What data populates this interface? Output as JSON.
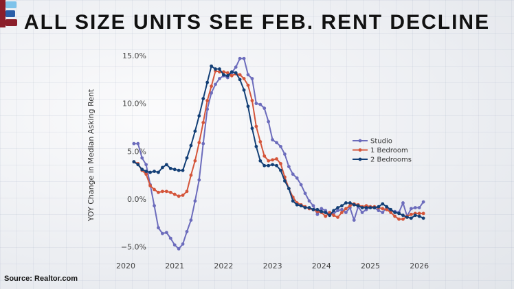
{
  "title": "ALL SIZE UNITS SEE FEB. RENT DECLINE",
  "source": "Source: Realtor.com",
  "logo_text": "B",
  "chart_data": {
    "type": "line",
    "title": "ALL SIZE UNITS SEE FEB. RENT DECLINE",
    "xlabel": "",
    "ylabel": "YOY Change in Median Asking Rent",
    "ylim": [
      -6.5,
      15.5
    ],
    "xlim": [
      "2020-01",
      "2026-04"
    ],
    "x_ticks": [
      "2020",
      "2021",
      "2022",
      "2023",
      "2024",
      "2025",
      "2026"
    ],
    "y_ticks": [
      {
        "value": 15,
        "label": "15.0%"
      },
      {
        "value": 10,
        "label": "10.0%"
      },
      {
        "value": 5,
        "label": "5.0%"
      },
      {
        "value": 0,
        "label": "0.0%"
      },
      {
        "value": -5,
        "label": "−5.0%"
      }
    ],
    "grid": false,
    "legend_placement": "center-right",
    "x": [
      "2020-03",
      "2020-04",
      "2020-05",
      "2020-06",
      "2020-07",
      "2020-08",
      "2020-09",
      "2020-10",
      "2020-11",
      "2020-12",
      "2021-01",
      "2021-02",
      "2021-03",
      "2021-04",
      "2021-05",
      "2021-06",
      "2021-07",
      "2021-08",
      "2021-09",
      "2021-10",
      "2021-11",
      "2021-12",
      "2022-01",
      "2022-02",
      "2022-03",
      "2022-04",
      "2022-05",
      "2022-06",
      "2022-07",
      "2022-08",
      "2022-09",
      "2022-10",
      "2022-11",
      "2022-12",
      "2023-01",
      "2023-02",
      "2023-03",
      "2023-04",
      "2023-05",
      "2023-06",
      "2023-07",
      "2023-08",
      "2023-09",
      "2023-10",
      "2023-11",
      "2023-12",
      "2024-01",
      "2024-02",
      "2024-03",
      "2024-04",
      "2024-05",
      "2024-06",
      "2024-07",
      "2024-08",
      "2024-09",
      "2024-10",
      "2024-11",
      "2024-12",
      "2025-01",
      "2025-02",
      "2025-03",
      "2025-04",
      "2025-05",
      "2025-06",
      "2025-07",
      "2025-08",
      "2025-09",
      "2025-10",
      "2025-11",
      "2025-12",
      "2026-01",
      "2026-02"
    ],
    "series": [
      {
        "name": "Studio",
        "color": "#6c6cbc",
        "values": [
          5.8,
          5.8,
          4.3,
          3.6,
          1.5,
          -0.7,
          -3.0,
          -3.6,
          -3.5,
          -4.1,
          -4.8,
          -5.2,
          -4.7,
          -3.4,
          -2.2,
          -0.2,
          2.0,
          5.8,
          9.4,
          11.1,
          12.0,
          12.6,
          12.9,
          12.7,
          13.2,
          13.8,
          14.7,
          14.7,
          13.0,
          12.6,
          10.0,
          9.9,
          9.5,
          8.1,
          6.2,
          5.9,
          5.5,
          4.7,
          3.4,
          2.6,
          2.2,
          1.5,
          0.6,
          -0.2,
          -0.7,
          -1.6,
          -1.0,
          -1.2,
          -1.7,
          -1.5,
          -1.2,
          -1.1,
          -1.4,
          -0.9,
          -2.2,
          -0.8,
          -1.4,
          -1.1,
          -0.8,
          -0.9,
          -1.2,
          -1.4,
          -0.9,
          -1.3,
          -1.3,
          -1.4,
          -0.4,
          -1.8,
          -1.0,
          -0.9,
          -0.9,
          -0.3
        ]
      },
      {
        "name": "1 Bedroom",
        "color": "#d4553a",
        "values": [
          3.9,
          3.7,
          3.0,
          2.6,
          1.4,
          1.0,
          0.7,
          0.8,
          0.8,
          0.7,
          0.5,
          0.3,
          0.4,
          0.8,
          2.5,
          4.0,
          5.9,
          8.0,
          10.3,
          11.8,
          13.4,
          13.3,
          13.3,
          13.2,
          12.9,
          13.1,
          13.0,
          12.6,
          11.9,
          10.3,
          7.6,
          6.0,
          4.5,
          4.0,
          4.1,
          4.2,
          3.7,
          2.3,
          1.1,
          0.2,
          -0.4,
          -0.6,
          -0.8,
          -1.0,
          -1.1,
          -1.3,
          -1.4,
          -1.8,
          -1.4,
          -1.7,
          -1.9,
          -1.4,
          -1.0,
          -0.7,
          -0.5,
          -0.6,
          -0.8,
          -0.7,
          -0.8,
          -0.8,
          -0.9,
          -1.0,
          -1.1,
          -1.4,
          -1.8,
          -2.1,
          -2.1,
          -1.8,
          -1.6,
          -1.5,
          -1.5,
          -1.5
        ]
      },
      {
        "name": "2 Bedrooms",
        "color": "#133f76",
        "values": [
          3.9,
          3.6,
          3.1,
          2.9,
          2.8,
          2.9,
          2.8,
          3.3,
          3.6,
          3.2,
          3.1,
          3.0,
          3.0,
          4.3,
          5.6,
          7.1,
          8.7,
          10.5,
          12.2,
          13.9,
          13.6,
          13.6,
          13.0,
          12.9,
          13.3,
          13.2,
          12.5,
          11.4,
          9.7,
          7.4,
          5.5,
          4.0,
          3.5,
          3.5,
          3.6,
          3.5,
          3.0,
          1.9,
          1.1,
          -0.2,
          -0.6,
          -0.7,
          -0.9,
          -0.9,
          -1.1,
          -1.1,
          -1.3,
          -1.4,
          -1.7,
          -1.2,
          -0.9,
          -0.7,
          -0.4,
          -0.4,
          -0.6,
          -0.7,
          -0.9,
          -0.9,
          -0.9,
          -0.9,
          -0.8,
          -0.5,
          -0.8,
          -1.1,
          -1.4,
          -1.5,
          -1.7,
          -1.9,
          -2.0,
          -1.7,
          -1.8,
          -2.0
        ]
      }
    ]
  }
}
